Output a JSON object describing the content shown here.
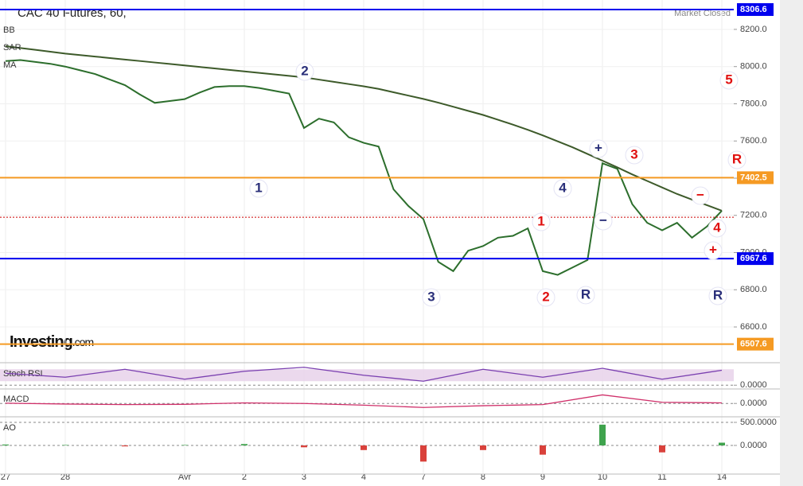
{
  "chart_data": [
    {
      "type": "line",
      "title": "CAC 40 Futures, 60,",
      "status": "Market Closed",
      "logo": "Investing",
      "logo_suffix": ".com",
      "indicators": [
        "BB",
        "SAR",
        "MA"
      ],
      "xlim": [
        -0.093,
        12.2
      ],
      "xticks": [
        {
          "value": 0,
          "label": "27"
        },
        {
          "value": 1,
          "label": "28"
        },
        {
          "value": 3,
          "label": "Avr"
        },
        {
          "value": 4,
          "label": "2"
        },
        {
          "value": 5,
          "label": "3"
        },
        {
          "value": 6,
          "label": "4"
        },
        {
          "value": 7,
          "label": "7"
        },
        {
          "value": 8,
          "label": "8"
        },
        {
          "value": 9,
          "label": "9"
        },
        {
          "value": 10,
          "label": "10"
        },
        {
          "value": 11,
          "label": "11"
        },
        {
          "value": 12,
          "label": "14"
        }
      ],
      "ylim": [
        6412,
        8358
      ],
      "yticks": [
        {
          "value": 6600,
          "label": "6600.0"
        },
        {
          "value": 6800,
          "label": "6800.0"
        },
        {
          "value": 7000,
          "label": "7000.0"
        },
        {
          "value": 7200,
          "label": "7200.0"
        },
        {
          "value": 7400,
          "label": "7400.0"
        },
        {
          "value": 7600,
          "label": "7600.0"
        },
        {
          "value": 7800,
          "label": "7800.0"
        },
        {
          "value": 8000,
          "label": "8000.0"
        },
        {
          "value": 8200,
          "label": "8200.0"
        }
      ],
      "x": [
        0,
        0.25,
        0.5,
        0.75,
        1,
        1.25,
        1.5,
        1.75,
        2,
        2.25,
        2.5,
        2.75,
        3,
        3.25,
        3.5,
        3.75,
        4,
        4.25,
        4.5,
        4.75,
        5,
        5.25,
        5.5,
        5.75,
        6,
        6.25,
        6.5,
        6.75,
        7,
        7.25,
        7.5,
        7.75,
        8,
        8.25,
        8.5,
        8.75,
        9,
        9.25,
        9.5,
        9.75,
        10,
        10.25,
        10.5,
        10.75,
        11,
        11.25,
        11.5,
        11.75,
        12
      ],
      "series": [
        {
          "color": "#2c6e2c",
          "values": [
            8030,
            8035,
            8025,
            8015,
            8000,
            7980,
            7960,
            7930,
            7900,
            7850,
            7805,
            7815,
            7825,
            7860,
            7890,
            7895,
            7895,
            7885,
            7870,
            7855,
            7670,
            7720,
            7700,
            7620,
            7590,
            7570,
            7340,
            7250,
            7180,
            6950,
            6900,
            7010,
            7035,
            7080,
            7090,
            7130,
            6900,
            6880,
            6920,
            6960,
            7480,
            7450,
            7260,
            7160,
            7120,
            7160,
            7080,
            7140,
            7225
          ]
        },
        {
          "color": "#3d5a2a",
          "values": [
            8110,
            8100,
            8090,
            8080,
            8070,
            8062,
            8054,
            8046,
            8038,
            8030,
            8022,
            8014,
            8006,
            7998,
            7990,
            7982,
            7974,
            7966,
            7958,
            7950,
            7942,
            7930,
            7918,
            7906,
            7894,
            7880,
            7862,
            7844,
            7826,
            7806,
            7784,
            7762,
            7740,
            7714,
            7688,
            7660,
            7630,
            7598,
            7566,
            7530,
            7494,
            7458,
            7420,
            7385,
            7350,
            7315,
            7285,
            7255,
            7225
          ]
        }
      ],
      "levels": [
        {
          "value": 8306.6,
          "color": "#0000ee"
        },
        {
          "value": 7402.5,
          "color": "#f59a23"
        },
        {
          "value": 6967.6,
          "color": "#0000ee"
        },
        {
          "value": 6507.6,
          "color": "#f59a23"
        }
      ],
      "last_price": 7190,
      "annotations": [
        {
          "text": "2",
          "color": "#2a2f7a"
        },
        {
          "text": "1",
          "color": "#2a2f7a"
        },
        {
          "text": "3",
          "color": "#2a2f7a"
        },
        {
          "text": "4",
          "color": "#2a2f7a"
        },
        {
          "text": "5",
          "color": "#e01010"
        },
        {
          "text": "R",
          "color": "#e01010"
        },
        {
          "text": "3",
          "color": "#e01010"
        },
        {
          "text": "2",
          "color": "#e01010"
        },
        {
          "text": "R",
          "color": "#2a2f7a"
        },
        {
          "text": "R",
          "color": "#2a2f7a"
        },
        {
          "text": "4",
          "color": "#e01010"
        },
        {
          "text": "+",
          "color": "#2a2f7a"
        },
        {
          "text": "+",
          "color": "#e01010"
        },
        {
          "text": "−",
          "color": "#e01010"
        },
        {
          "text": "−",
          "color": "#2a2f7a"
        },
        {
          "text": "1",
          "color": "#e01010"
        }
      ]
    },
    {
      "type": "line",
      "title": "Stoch RSI",
      "xlim": [
        -0.093,
        12.2
      ],
      "ylim": [
        -15,
        105
      ],
      "yticks": [
        {
          "value": 0,
          "label": "0.0000"
        }
      ],
      "x": [
        0,
        1,
        2,
        3,
        4,
        5,
        6,
        7,
        8,
        9,
        10,
        11,
        12
      ],
      "series": [
        {
          "color": "#7a3fb0",
          "values": [
            60,
            40,
            80,
            30,
            70,
            90,
            50,
            20,
            80,
            40,
            85,
            30,
            75
          ]
        }
      ]
    },
    {
      "type": "line",
      "title": "MACD",
      "xlim": [
        -0.093,
        12.2
      ],
      "ylim": [
        -220,
        240
      ],
      "yticks": [
        {
          "value": 0,
          "label": "0.0000"
        }
      ],
      "x": [
        0,
        1,
        2,
        3,
        4,
        5,
        6,
        7,
        8,
        9,
        10,
        11,
        12
      ],
      "series": [
        {
          "color": "#d0306a",
          "values": [
            5,
            -10,
            -20,
            -15,
            10,
            0,
            -30,
            -70,
            -40,
            -20,
            150,
            20,
            10
          ]
        }
      ]
    },
    {
      "type": "bar",
      "title": "AO",
      "xlim": [
        -0.093,
        12.2
      ],
      "ylim": [
        -603,
        586
      ],
      "yticks": [
        {
          "value": 500,
          "label": "500.0000"
        },
        {
          "value": 0,
          "label": "0.0000"
        }
      ],
      "x": [
        0,
        1,
        2,
        3,
        4,
        5,
        6,
        7,
        8,
        9,
        10,
        11,
        12
      ],
      "values": [
        20,
        10,
        -20,
        10,
        30,
        -40,
        -100,
        -350,
        -100,
        -200,
        450,
        -150,
        60
      ]
    }
  ]
}
